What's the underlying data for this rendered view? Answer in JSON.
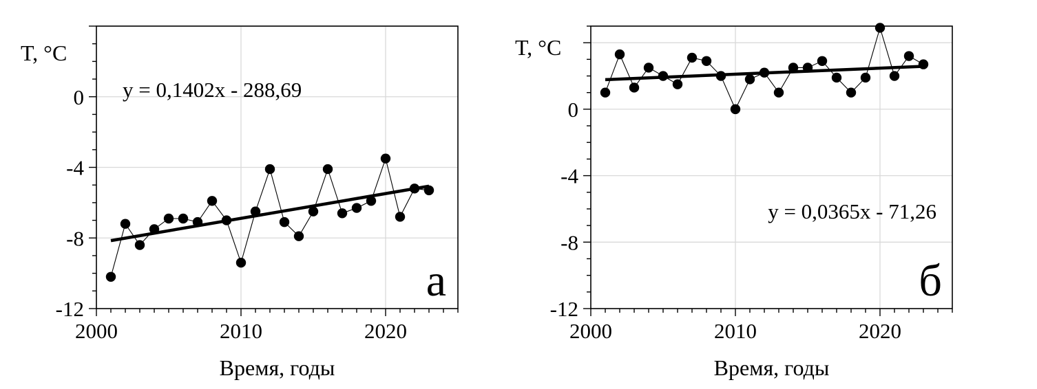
{
  "chart_data": [
    {
      "panel_letter": "а",
      "type": "scatter",
      "ylabel": "T, °C",
      "xlabel": "Время, годы",
      "equation": "y = 0,1402x - 288,69",
      "xlim": [
        2000,
        2025
      ],
      "ylim": [
        -12,
        4
      ],
      "x_ticks": [
        2000,
        2010,
        2020
      ],
      "y_ticks": [
        -12,
        -8,
        -4,
        0,
        4
      ],
      "y_tick_labels": [
        "-12",
        "-8",
        "-4",
        "0",
        ""
      ],
      "grid": true,
      "series": [
        {
          "x": [
            2001,
            2002,
            2003,
            2004,
            2005,
            2006,
            2007,
            2008,
            2009,
            2010,
            2011,
            2012,
            2013,
            2014,
            2015,
            2016,
            2017,
            2018,
            2019,
            2020,
            2021,
            2022,
            2023
          ],
          "y": [
            -10.2,
            -7.2,
            -8.4,
            -7.5,
            -6.9,
            -6.9,
            -7.1,
            -5.9,
            -7.0,
            -9.4,
            -6.5,
            -4.1,
            -7.1,
            -7.9,
            -6.5,
            -4.1,
            -6.6,
            -6.3,
            -5.9,
            -3.5,
            -6.8,
            -5.2,
            -5.3
          ]
        }
      ],
      "trend": {
        "slope": 0.1402,
        "intercept": -288.69,
        "x_range": [
          2001,
          2023
        ]
      }
    },
    {
      "panel_letter": "б",
      "type": "scatter",
      "ylabel": "T, °C",
      "xlabel": "Время, годы",
      "equation": "y = 0,0365x - 71,26",
      "xlim": [
        2000,
        2025
      ],
      "ylim": [
        -12,
        5
      ],
      "x_ticks": [
        2000,
        2010,
        2020
      ],
      "y_ticks": [
        -12,
        -8,
        -4,
        0,
        4
      ],
      "y_tick_labels": [
        "-12",
        "-8",
        "-4",
        "0",
        ""
      ],
      "grid": true,
      "series": [
        {
          "x": [
            2001,
            2002,
            2003,
            2004,
            2005,
            2006,
            2007,
            2008,
            2009,
            2010,
            2011,
            2012,
            2013,
            2014,
            2015,
            2016,
            2017,
            2018,
            2019,
            2020,
            2021,
            2022,
            2023
          ],
          "y": [
            1.0,
            3.3,
            1.3,
            2.5,
            2.0,
            1.5,
            3.1,
            2.9,
            2.0,
            0.0,
            1.8,
            2.2,
            1.0,
            2.5,
            2.5,
            2.9,
            1.9,
            1.0,
            1.9,
            4.9,
            2.0,
            3.2,
            2.7
          ]
        }
      ],
      "trend": {
        "slope": 0.0365,
        "intercept": -71.26,
        "x_range": [
          2001,
          2023
        ]
      }
    }
  ]
}
